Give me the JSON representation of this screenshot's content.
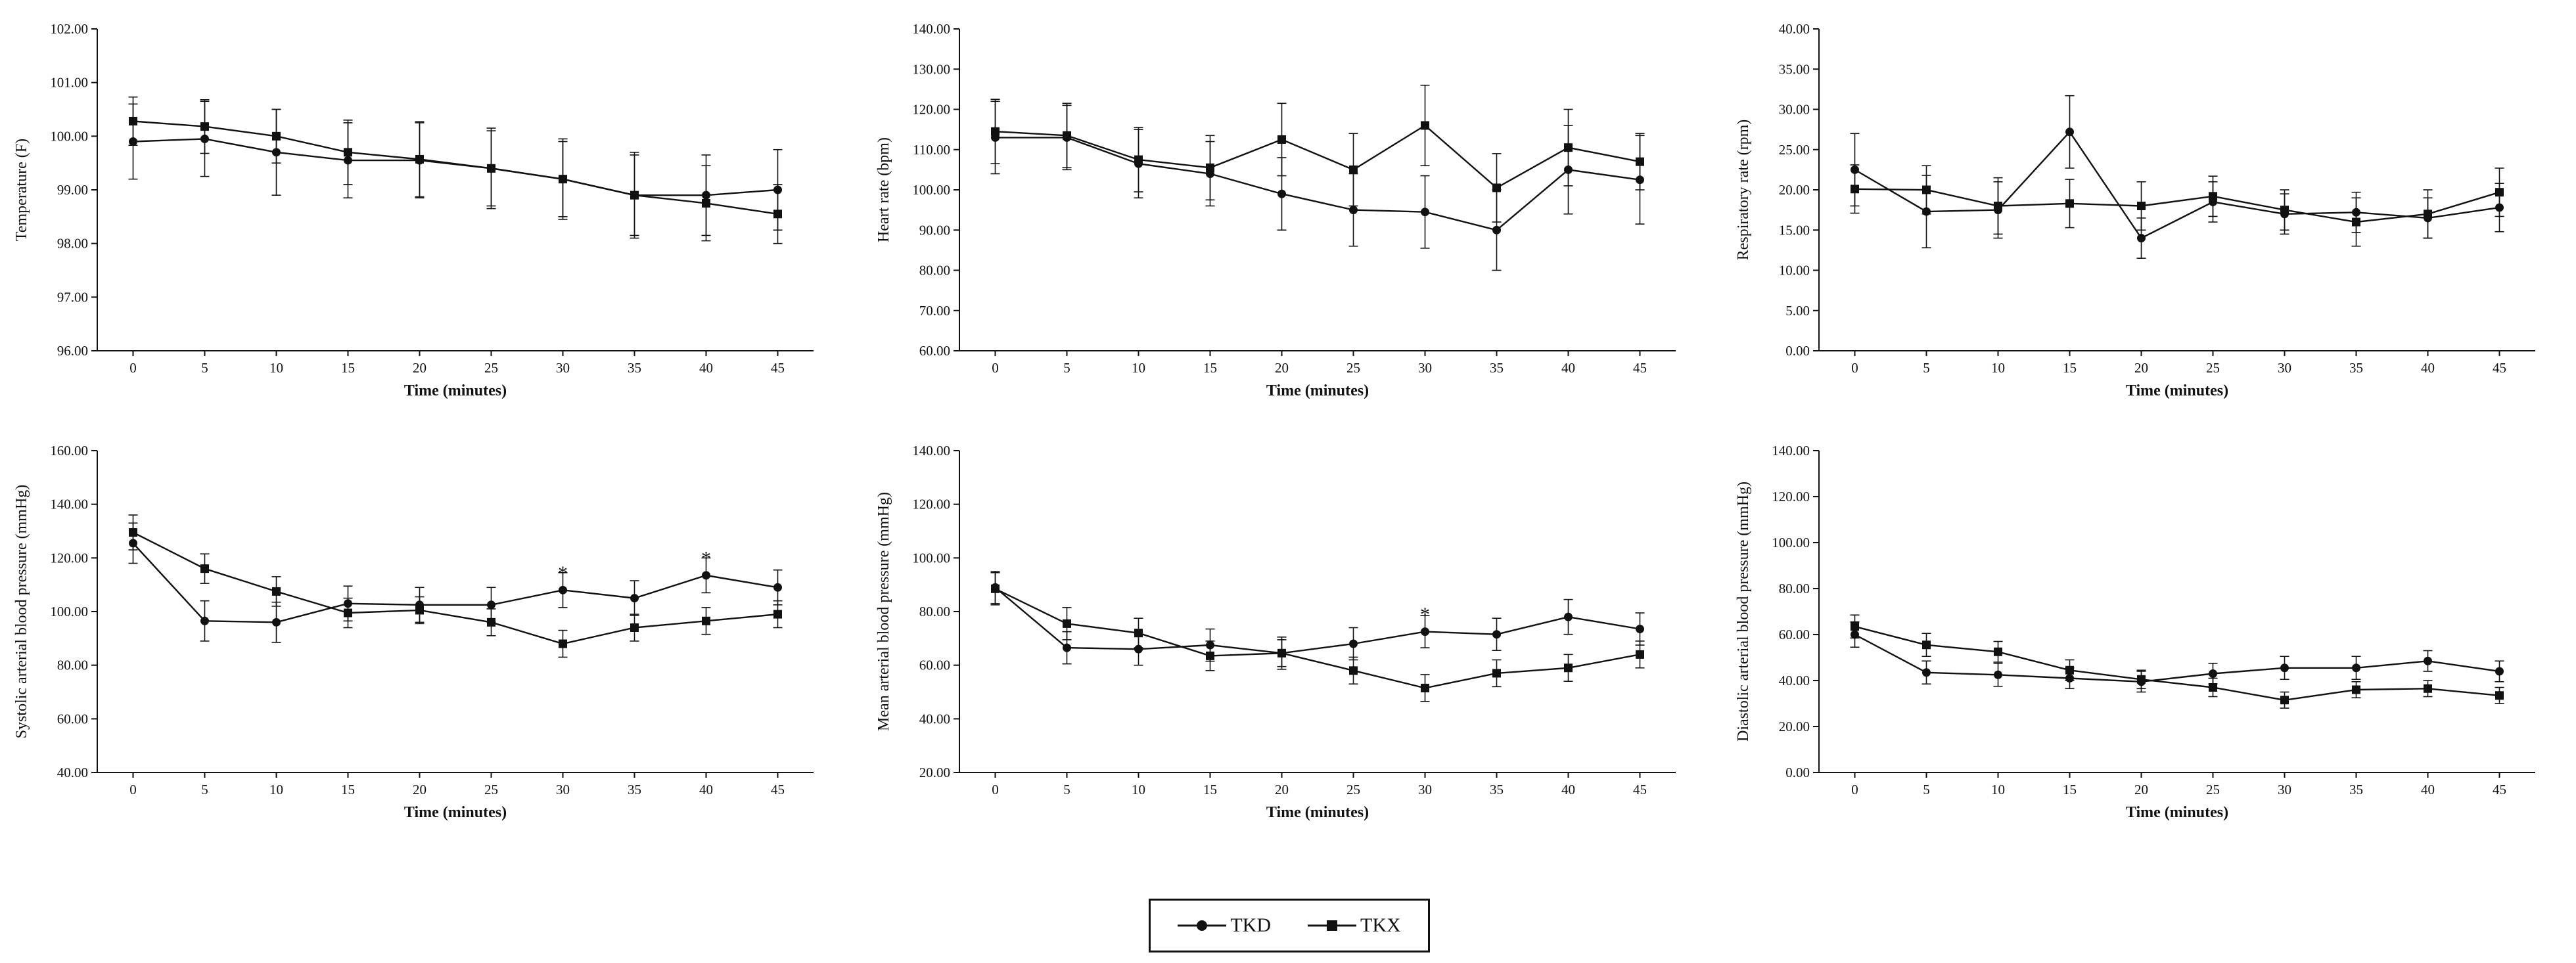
{
  "chart_data": [
    {
      "type": "line",
      "ylabel": "Temperature (F)",
      "xlabel": "Time (minutes)",
      "x": [
        0,
        5,
        10,
        15,
        20,
        25,
        30,
        35,
        40,
        45
      ],
      "ylim": [
        96,
        102
      ],
      "ytick_step": 1,
      "yticks": [
        "96.00",
        "97.00",
        "98.00",
        "99.00",
        "100.00",
        "101.00",
        "102.00"
      ],
      "series": [
        {
          "name": "TKD",
          "marker": "circle",
          "values": [
            99.9,
            99.95,
            99.7,
            99.55,
            99.55,
            99.4,
            99.2,
            98.9,
            98.9,
            99.0
          ],
          "errors": [
            0.7,
            0.7,
            0.8,
            0.7,
            0.7,
            0.7,
            0.7,
            0.8,
            0.75,
            0.75
          ]
        },
        {
          "name": "TKX",
          "marker": "square",
          "values": [
            100.28,
            100.18,
            100.0,
            99.7,
            99.57,
            99.4,
            99.2,
            98.9,
            98.75,
            98.55
          ],
          "errors": [
            0.45,
            0.5,
            0.5,
            0.6,
            0.7,
            0.75,
            0.75,
            0.75,
            0.7,
            0.55
          ]
        }
      ],
      "annotations": []
    },
    {
      "type": "line",
      "ylabel": "Heart rate (bpm)",
      "xlabel": "Time (minutes)",
      "x": [
        0,
        5,
        10,
        15,
        20,
        25,
        30,
        35,
        40,
        45
      ],
      "ylim": [
        60,
        140
      ],
      "ytick_step": 10,
      "yticks": [
        "60.00",
        "70.00",
        "80.00",
        "90.00",
        "100.00",
        "110.00",
        "120.00",
        "130.00",
        "140.00"
      ],
      "series": [
        {
          "name": "TKD",
          "marker": "circle",
          "values": [
            113,
            113,
            106.5,
            104,
            99,
            95,
            94.5,
            90,
            105,
            102.5
          ],
          "errors": [
            9,
            8,
            8.5,
            8,
            9,
            9,
            9,
            10,
            11,
            11
          ]
        },
        {
          "name": "TKX",
          "marker": "square",
          "values": [
            114.5,
            113.5,
            107.5,
            105.5,
            112.5,
            105,
            116,
            100.5,
            110.5,
            107
          ],
          "errors": [
            8,
            8,
            8,
            8,
            9,
            9,
            10,
            8.5,
            9.5,
            7
          ]
        }
      ],
      "annotations": []
    },
    {
      "type": "line",
      "ylabel": "Respiratory rate (rpm)",
      "xlabel": "Time (minutes)",
      "x": [
        0,
        5,
        10,
        15,
        20,
        25,
        30,
        35,
        40,
        45
      ],
      "ylim": [
        0,
        40
      ],
      "ytick_step": 5,
      "yticks": [
        "0.00",
        "5.00",
        "10.00",
        "15.00",
        "20.00",
        "25.00",
        "30.00",
        "35.00",
        "40.00"
      ],
      "series": [
        {
          "name": "TKD",
          "marker": "circle",
          "values": [
            22.5,
            17.3,
            17.5,
            27.2,
            14.0,
            18.5,
            17.0,
            17.2,
            16.5,
            17.8
          ],
          "errors": [
            4.5,
            4.5,
            3.5,
            4.5,
            2.5,
            2.5,
            2.5,
            2.5,
            2.5,
            3
          ]
        },
        {
          "name": "TKX",
          "marker": "square",
          "values": [
            20.1,
            20.0,
            18.0,
            18.3,
            18.0,
            19.2,
            17.5,
            16.0,
            17.0,
            19.7
          ],
          "errors": [
            3,
            3,
            3.5,
            3,
            3,
            2.5,
            2.5,
            3,
            3,
            3
          ]
        }
      ],
      "annotations": []
    },
    {
      "type": "line",
      "ylabel": "Systolic arterial blood pressure (mmHg)",
      "xlabel": "Time (minutes)",
      "x": [
        0,
        5,
        10,
        15,
        20,
        25,
        30,
        35,
        40,
        45
      ],
      "ylim": [
        40,
        160
      ],
      "ytick_step": 20,
      "yticks": [
        "40.00",
        "60.00",
        "80.00",
        "100.00",
        "120.00",
        "140.00",
        "160.00"
      ],
      "series": [
        {
          "name": "TKD",
          "marker": "circle",
          "values": [
            125.5,
            96.5,
            96,
            103,
            102.5,
            102.5,
            108,
            105,
            113.5,
            109
          ],
          "errors": [
            7.5,
            7.5,
            7.5,
            6.5,
            6.5,
            6.5,
            6.5,
            6.5,
            6.5,
            6.5
          ]
        },
        {
          "name": "TKX",
          "marker": "square",
          "values": [
            129.5,
            116,
            107.5,
            99.5,
            100.5,
            96,
            88,
            94,
            96.5,
            99
          ],
          "errors": [
            6.5,
            5.5,
            5.5,
            5.5,
            5,
            5,
            5,
            5,
            5,
            5
          ]
        }
      ],
      "annotations": [
        {
          "x": 30,
          "y": 114.5,
          "text": "*"
        },
        {
          "x": 40,
          "y": 120,
          "text": "*"
        }
      ]
    },
    {
      "type": "line",
      "ylabel": "Mean arterial blood pressure (mmHg)",
      "xlabel": "Time (minutes)",
      "x": [
        0,
        5,
        10,
        15,
        20,
        25,
        30,
        35,
        40,
        45
      ],
      "ylim": [
        20,
        140
      ],
      "ytick_step": 20,
      "yticks": [
        "20.00",
        "40.00",
        "60.00",
        "80.00",
        "100.00",
        "120.00",
        "140.00"
      ],
      "series": [
        {
          "name": "TKD",
          "marker": "circle",
          "values": [
            89,
            66.5,
            66,
            67.5,
            64.5,
            68,
            72.5,
            71.5,
            78,
            73.5
          ],
          "errors": [
            6,
            6,
            6,
            6,
            6,
            6,
            6,
            6,
            6.5,
            6
          ]
        },
        {
          "name": "TKX",
          "marker": "square",
          "values": [
            88.5,
            75.5,
            72,
            63.5,
            64.5,
            58,
            51.5,
            57,
            59,
            64
          ],
          "errors": [
            6,
            6,
            5.5,
            5.5,
            5,
            5,
            5,
            5,
            5,
            5
          ]
        }
      ],
      "annotations": [
        {
          "x": 30,
          "y": 79,
          "text": "*"
        }
      ]
    },
    {
      "type": "line",
      "ylabel": "Diastolic arterial blood pressure (mmHg)",
      "xlabel": "Time (minutes)",
      "x": [
        0,
        5,
        10,
        15,
        20,
        25,
        30,
        35,
        40,
        45
      ],
      "ylim": [
        0,
        140
      ],
      "ytick_step": 20,
      "yticks": [
        "0.00",
        "20.00",
        "40.00",
        "60.00",
        "80.00",
        "100.00",
        "120.00",
        "140.00"
      ],
      "series": [
        {
          "name": "TKD",
          "marker": "circle",
          "values": [
            60,
            43.5,
            42.5,
            41,
            39.5,
            43,
            45.5,
            45.5,
            48.5,
            44
          ],
          "errors": [
            5.5,
            5,
            5,
            4.5,
            4.5,
            4.5,
            5,
            5,
            4.5,
            4.5
          ]
        },
        {
          "name": "TKX",
          "marker": "square",
          "values": [
            63.5,
            55.5,
            52.5,
            44.5,
            40.5,
            37,
            31.5,
            36,
            36.5,
            33.5
          ],
          "errors": [
            5,
            5,
            4.5,
            4.5,
            4,
            4,
            3.5,
            3.5,
            3.5,
            3.5
          ]
        }
      ],
      "annotations": []
    }
  ],
  "legend": {
    "items": [
      {
        "label": "TKD",
        "marker": "circle"
      },
      {
        "label": "TKX",
        "marker": "square"
      }
    ]
  }
}
